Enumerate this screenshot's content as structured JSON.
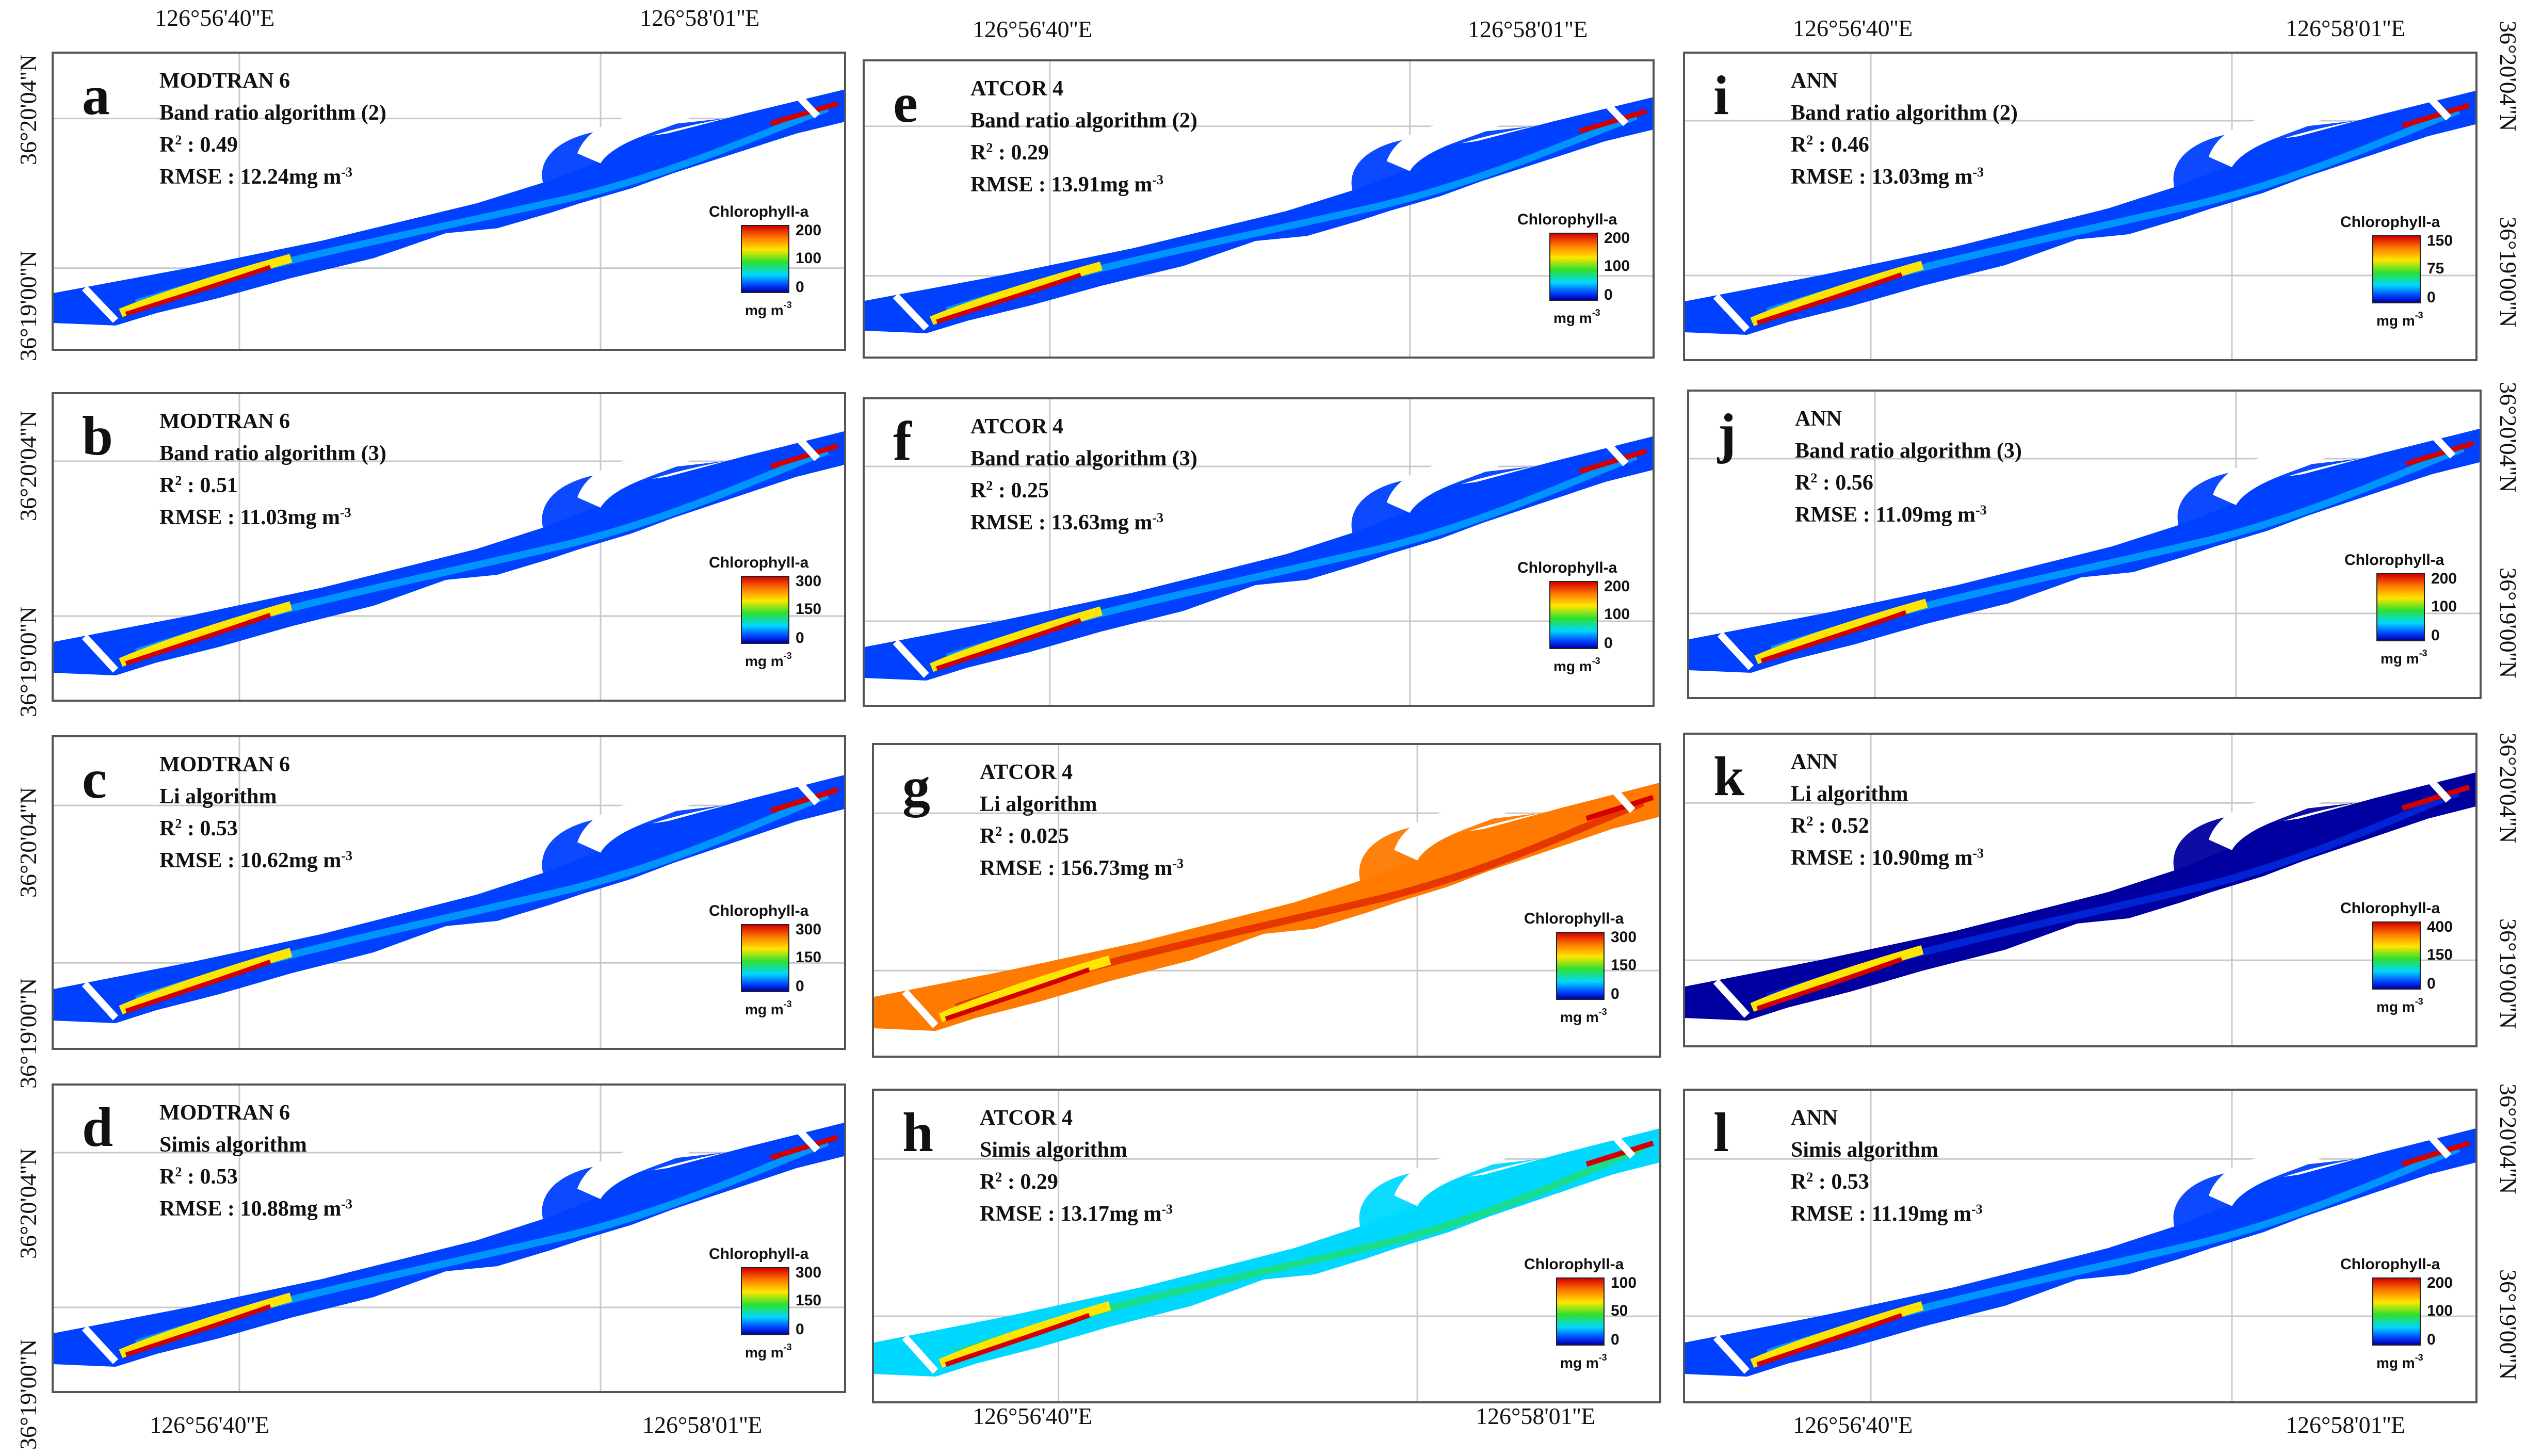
{
  "lon_labels": [
    "126°56'40''E",
    "126°58'01''E"
  ],
  "lat_labels": [
    "36°20'04''N",
    "36°19'00''N"
  ],
  "legend_title": "Chlorophyll-a",
  "legend_unit": "mg m",
  "legend_unit_exp": "-3",
  "r2_prefix": "R",
  "r2_exp": "2",
  "r2_suffix": " : ",
  "rmse_prefix": "RMSE : ",
  "rmse_unit": "mg m",
  "rmse_exp": "-3",
  "palette": {
    "red": "#d40000",
    "orange": "#ff7a00",
    "yellow": "#ffe600",
    "green": "#2ee02e",
    "cyan": "#00d8ff",
    "blue": "#0040ff",
    "navy": "#0000a0"
  },
  "panels": [
    {
      "letter": "a",
      "method": "MODTRAN 6",
      "algorithm": "Band ratio algorithm (2)",
      "r2": "0.49",
      "rmse": "12.24",
      "legend_max": "200",
      "legend_mid": "100",
      "legend_min": "0",
      "style": "blue"
    },
    {
      "letter": "b",
      "method": "MODTRAN 6",
      "algorithm": "Band ratio algorithm (3)",
      "r2": "0.51",
      "rmse": "11.03",
      "legend_max": "300",
      "legend_mid": "150",
      "legend_min": "0",
      "style": "blue"
    },
    {
      "letter": "c",
      "method": "MODTRAN 6",
      "algorithm": "Li algorithm",
      "r2": "0.53",
      "rmse": "10.62",
      "legend_max": "300",
      "legend_mid": "150",
      "legend_min": "0",
      "style": "blue"
    },
    {
      "letter": "d",
      "method": "MODTRAN 6",
      "algorithm": "Simis algorithm",
      "r2": "0.53",
      "rmse": "10.88",
      "legend_max": "300",
      "legend_mid": "150",
      "legend_min": "0",
      "style": "blue"
    },
    {
      "letter": "e",
      "method": "ATCOR 4",
      "algorithm": "Band ratio algorithm (2)",
      "r2": "0.29",
      "rmse": "13.91",
      "legend_max": "200",
      "legend_mid": "100",
      "legend_min": "0",
      "style": "blue"
    },
    {
      "letter": "f",
      "method": "ATCOR 4",
      "algorithm": "Band ratio algorithm (3)",
      "r2": "0.25",
      "rmse": "13.63",
      "legend_max": "200",
      "legend_mid": "100",
      "legend_min": "0",
      "style": "blue"
    },
    {
      "letter": "g",
      "method": "ATCOR 4",
      "algorithm": "Li algorithm",
      "r2": "0.025",
      "rmse": "156.73",
      "legend_max": "300",
      "legend_mid": "150",
      "legend_min": "0",
      "style": "red"
    },
    {
      "letter": "h",
      "method": "ATCOR 4",
      "algorithm": "Simis algorithm",
      "r2": "0.29",
      "rmse": "13.17",
      "legend_max": "100",
      "legend_mid": "50",
      "legend_min": "0",
      "style": "cyan"
    },
    {
      "letter": "i",
      "method": "ANN",
      "algorithm": "Band ratio algorithm (2)",
      "r2": "0.46",
      "rmse": "13.03",
      "legend_max": "150",
      "legend_mid": "75",
      "legend_min": "0",
      "style": "blue"
    },
    {
      "letter": "j",
      "method": "ANN",
      "algorithm": "Band ratio algorithm (3)",
      "r2": "0.56",
      "rmse": "11.09",
      "legend_max": "200",
      "legend_mid": "100",
      "legend_min": "0",
      "style": "blue"
    },
    {
      "letter": "k",
      "method": "ANN",
      "algorithm": "Li algorithm",
      "r2": "0.52",
      "rmse": "10.90",
      "legend_max": "400",
      "legend_mid": "150",
      "legend_min": "0",
      "style": "navy"
    },
    {
      "letter": "l",
      "method": "ANN",
      "algorithm": "Simis algorithm",
      "r2": "0.53",
      "rmse": "11.19",
      "legend_max": "200",
      "legend_mid": "100",
      "legend_min": "0",
      "style": "blue"
    }
  ]
}
